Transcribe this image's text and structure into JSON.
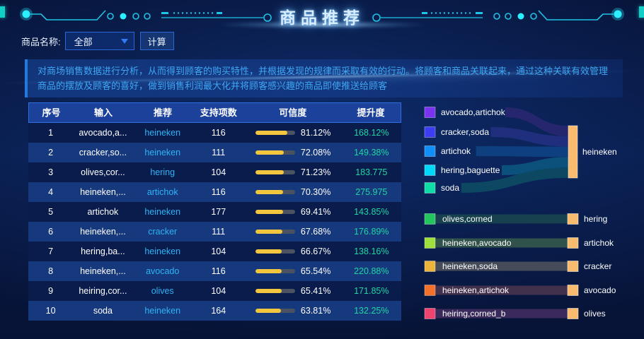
{
  "header": {
    "title": "商品推荐"
  },
  "filter": {
    "label": "商品名称:",
    "select_value": "全部",
    "button_label": "计算"
  },
  "description": "对商场销售数据进行分析，从而得到顾客的购买特性，并根据发现的规律而采取有效的行动。将顾客和商品关联起来，通过这种关联有效管理商品的摆放及顾客的喜好，做到销售利润最大化并将顾客感兴趣的商品即使推送给顾客",
  "table": {
    "columns": [
      "序号",
      "输入",
      "推荐",
      "支持项数",
      "可信度",
      "提升度"
    ],
    "rows": [
      {
        "idx": "1",
        "input": "avocado,a...",
        "rec": "heineken",
        "support": "116",
        "confidence": 81.12,
        "confidence_label": "81.12%",
        "lift": "168.12%"
      },
      {
        "idx": "2",
        "input": "cracker,so...",
        "rec": "heineken",
        "support": "111",
        "confidence": 72.08,
        "confidence_label": "72.08%",
        "lift": "149.38%"
      },
      {
        "idx": "3",
        "input": "olives,cor...",
        "rec": "hering",
        "support": "104",
        "confidence": 71.23,
        "confidence_label": "71.23%",
        "lift": "183.775"
      },
      {
        "idx": "4",
        "input": "heineken,...",
        "rec": "artichok",
        "support": "116",
        "confidence": 70.3,
        "confidence_label": "70.30%",
        "lift": "275.975"
      },
      {
        "idx": "5",
        "input": "artichok",
        "rec": "heineken",
        "support": "177",
        "confidence": 69.41,
        "confidence_label": "69.41%",
        "lift": "143.85%"
      },
      {
        "idx": "6",
        "input": "heineken,...",
        "rec": "cracker",
        "support": "111",
        "confidence": 67.68,
        "confidence_label": "67.68%",
        "lift": "176.89%"
      },
      {
        "idx": "7",
        "input": "hering,ba...",
        "rec": "heineken",
        "support": "104",
        "confidence": 66.67,
        "confidence_label": "66.67%",
        "lift": "138.16%"
      },
      {
        "idx": "8",
        "input": "heineken,...",
        "rec": "avocado",
        "support": "116",
        "confidence": 65.54,
        "confidence_label": "65.54%",
        "lift": "220.88%"
      },
      {
        "idx": "9",
        "input": "heiring,cor...",
        "rec": "olives",
        "support": "104",
        "confidence": 65.41,
        "confidence_label": "65.41%",
        "lift": "171.85%"
      },
      {
        "idx": "10",
        "input": "soda",
        "rec": "heineken",
        "support": "164",
        "confidence": 63.81,
        "confidence_label": "63.81%",
        "lift": "132.25%"
      }
    ]
  },
  "chart_data": {
    "type": "sankey",
    "groups": [
      {
        "target": {
          "label": "heineken",
          "color": "#f9bb6d"
        },
        "sources": [
          {
            "label": "avocado,artichok",
            "color": "#7b33f2",
            "flow_color": "#27266f"
          },
          {
            "label": "cracker,soda",
            "color": "#3d3df2",
            "flow_color": "#20307f"
          },
          {
            "label": "artichok",
            "color": "#0f8ff7",
            "flow_color": "#0f4180"
          },
          {
            "label": "hering,baguette",
            "color": "#00d9f7",
            "flow_color": "#0d527e"
          },
          {
            "label": "soda",
            "color": "#10dca8",
            "flow_color": "#0d4a63"
          }
        ]
      }
    ],
    "pairs": [
      {
        "source": "olives,corned",
        "source_color": "#22c55e",
        "target": "hering",
        "target_color": "#f9bb6d",
        "band_color": "#17414e"
      },
      {
        "source": "heineken,avocado",
        "source_color": "#a0e03c",
        "target": "artichok",
        "target_color": "#f9bb6d",
        "band_color": "#31524a"
      },
      {
        "source": "heineken,soda",
        "source_color": "#edb43c",
        "target": "cracker",
        "target_color": "#f9bb6d",
        "band_color": "#454b58"
      },
      {
        "source": "heineken,artichok",
        "source_color": "#f4702b",
        "target": "avocado",
        "target_color": "#f9bb6d",
        "band_color": "#42314c"
      },
      {
        "source": "heiring,corned_b",
        "source_color": "#ef4370",
        "target": "olives",
        "target_color": "#f9bb6d",
        "band_color": "#3a2a5c"
      }
    ]
  },
  "colors": {
    "accent_cyan": "#1fc4e6",
    "bar_fill": "#f2c63e",
    "recommend_text": "#2fb3f7",
    "lift_text": "#1fd6a2",
    "table_header_bg": "#1c419b",
    "row_even_bg": "#16387c"
  }
}
